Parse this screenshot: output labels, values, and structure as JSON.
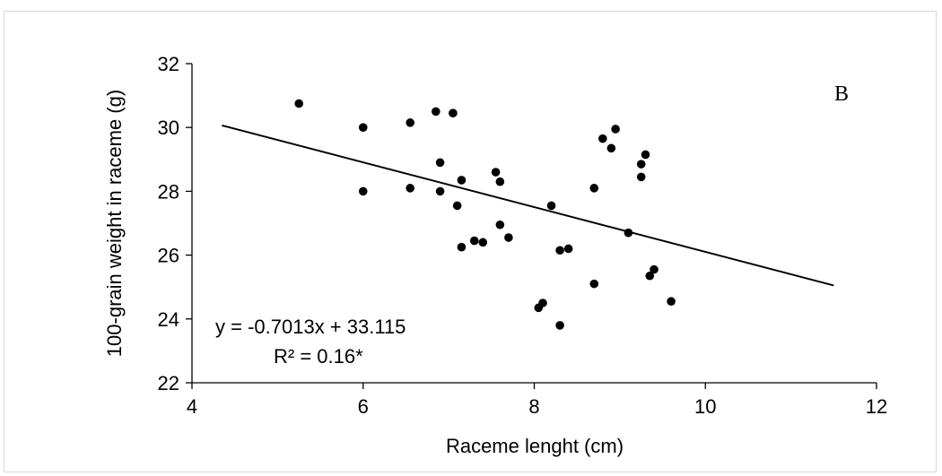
{
  "chart_data": {
    "type": "scatter",
    "xlabel": "Raceme lenght (cm)",
    "ylabel": "100-grain weight in raceme (g)",
    "xlim": [
      4,
      12
    ],
    "ylim": [
      22,
      32
    ],
    "xticks": [
      "4",
      "6",
      "8",
      "10",
      "12"
    ],
    "yticks": [
      "22",
      "24",
      "26",
      "28",
      "30",
      "32"
    ],
    "panel_label": "B",
    "equation": "y = -0.7013x + 33.115",
    "r_squared": "R² = 0.16*",
    "trendline": {
      "slope": -0.7013,
      "intercept": 33.115,
      "x_start": 4.35,
      "x_end": 11.5
    },
    "marker_color": "#000000",
    "grid": false,
    "points": [
      {
        "x": 5.25,
        "y": 30.75
      },
      {
        "x": 6.0,
        "y": 30.0
      },
      {
        "x": 6.0,
        "y": 28.0
      },
      {
        "x": 6.55,
        "y": 30.15
      },
      {
        "x": 6.55,
        "y": 28.1
      },
      {
        "x": 6.85,
        "y": 30.5
      },
      {
        "x": 6.9,
        "y": 28.9
      },
      {
        "x": 6.9,
        "y": 28.0
      },
      {
        "x": 7.05,
        "y": 30.45
      },
      {
        "x": 7.1,
        "y": 27.55
      },
      {
        "x": 7.15,
        "y": 28.35
      },
      {
        "x": 7.15,
        "y": 26.25
      },
      {
        "x": 7.3,
        "y": 26.45
      },
      {
        "x": 7.4,
        "y": 26.4
      },
      {
        "x": 7.55,
        "y": 28.6
      },
      {
        "x": 7.6,
        "y": 28.3
      },
      {
        "x": 7.6,
        "y": 26.95
      },
      {
        "x": 7.7,
        "y": 26.55
      },
      {
        "x": 8.05,
        "y": 24.35
      },
      {
        "x": 8.1,
        "y": 24.5
      },
      {
        "x": 8.2,
        "y": 27.55
      },
      {
        "x": 8.3,
        "y": 26.15
      },
      {
        "x": 8.3,
        "y": 23.8
      },
      {
        "x": 8.4,
        "y": 26.2
      },
      {
        "x": 8.7,
        "y": 28.1
      },
      {
        "x": 8.7,
        "y": 25.1
      },
      {
        "x": 8.8,
        "y": 29.65
      },
      {
        "x": 8.9,
        "y": 29.35
      },
      {
        "x": 8.95,
        "y": 29.95
      },
      {
        "x": 9.1,
        "y": 26.7
      },
      {
        "x": 9.25,
        "y": 28.85
      },
      {
        "x": 9.25,
        "y": 28.45
      },
      {
        "x": 9.3,
        "y": 29.15
      },
      {
        "x": 9.35,
        "y": 25.35
      },
      {
        "x": 9.4,
        "y": 25.55
      },
      {
        "x": 9.6,
        "y": 24.55
      }
    ]
  }
}
